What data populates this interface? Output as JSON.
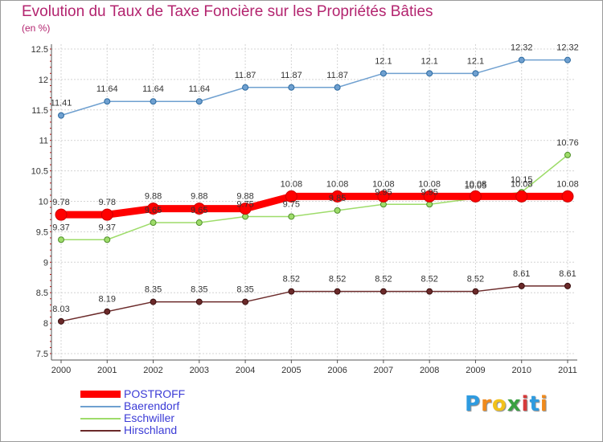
{
  "header": {
    "title": "Evolution du Taux de Taxe Foncière sur les Propriétés Bâties",
    "subtitle": "(en %)"
  },
  "chart_data": {
    "type": "line",
    "title": "Evolution du Taux de Taxe Foncière sur les Propriétés Bâties",
    "ylabel": "(en %)",
    "xlabel": "",
    "x": [
      "2000",
      "2001",
      "2002",
      "2003",
      "2004",
      "2005",
      "2006",
      "2007",
      "2008",
      "2009",
      "2010",
      "2011"
    ],
    "ylim": [
      7.5,
      12.5
    ],
    "yticks": [
      "7.5",
      "8",
      "8.5",
      "9",
      "9.5",
      "10",
      "10.5",
      "11",
      "11.5",
      "12",
      "12.5"
    ],
    "grid": true,
    "legend_position": "bottom-left",
    "series": [
      {
        "name": "POSTROFF",
        "color": "#ff0000",
        "values": [
          9.78,
          9.78,
          9.88,
          9.88,
          9.88,
          10.08,
          10.08,
          10.08,
          10.08,
          10.08,
          10.08,
          10.08
        ],
        "labels": [
          "9.78",
          "9.78",
          "9.88",
          "9.88",
          "9.88",
          "10.08",
          "10.08",
          "10.08",
          "10.08",
          "10.08",
          "10.08",
          "10.08"
        ]
      },
      {
        "name": "Baerendorf",
        "color": "#6fa0d0",
        "values": [
          11.41,
          11.64,
          11.64,
          11.64,
          11.87,
          11.87,
          11.87,
          12.1,
          12.1,
          12.1,
          12.32,
          12.32
        ],
        "labels": [
          "11.41",
          "11.64",
          "11.64",
          "11.64",
          "11.87",
          "11.87",
          "11.87",
          "12.1",
          "12.1",
          "12.1",
          "12.32",
          "12.32"
        ]
      },
      {
        "name": "Eschwiller",
        "color": "#9edc6a",
        "values": [
          9.37,
          9.37,
          9.65,
          9.65,
          9.75,
          9.75,
          9.85,
          9.95,
          9.95,
          10.05,
          10.15,
          10.76
        ],
        "labels": [
          "9.37",
          "9.37",
          "9.65",
          "9.65",
          "9.75",
          "9.75",
          "9.85",
          "9.95",
          "9.95",
          "10.05",
          "10.15",
          "10.76"
        ]
      },
      {
        "name": "Hirschland",
        "color": "#6b2a2a",
        "values": [
          8.03,
          8.19,
          8.35,
          8.35,
          8.35,
          8.52,
          8.52,
          8.52,
          8.52,
          8.52,
          8.61,
          8.61
        ],
        "labels": [
          "8.03",
          "8.19",
          "8.35",
          "8.35",
          "8.35",
          "8.52",
          "8.52",
          "8.52",
          "8.52",
          "8.52",
          "8.61",
          "8.61"
        ]
      }
    ]
  },
  "legend": {
    "items": [
      "POSTROFF",
      "Baerendorf",
      "Eschwiller",
      "Hirschland"
    ]
  },
  "logo": {
    "letters": [
      "P",
      "r",
      "o",
      "x",
      "i",
      "t",
      "i"
    ],
    "colors": [
      "#2e9be0",
      "#f08a1c",
      "#f2c21b",
      "#3aa142",
      "#d63a3a",
      "#2e9be0",
      "#f08a1c"
    ]
  }
}
